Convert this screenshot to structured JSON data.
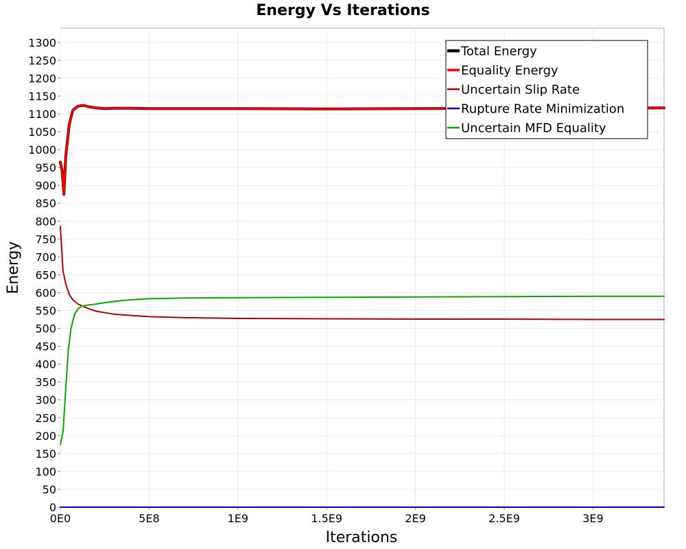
{
  "chart_data": {
    "type": "line",
    "title": "Energy Vs Iterations",
    "xlabel": "Iterations",
    "ylabel": "Energy",
    "xlim": [
      0,
      3400000000
    ],
    "ylim": [
      0,
      1340
    ],
    "grid": true,
    "legend_position": "top-right",
    "x_ticks": [
      {
        "value": 0,
        "label": "0E0"
      },
      {
        "value": 500000000,
        "label": "5E8"
      },
      {
        "value": 1000000000,
        "label": "1E9"
      },
      {
        "value": 1500000000,
        "label": "1.5E9"
      },
      {
        "value": 2000000000,
        "label": "2E9"
      },
      {
        "value": 2500000000,
        "label": "2.5E9"
      },
      {
        "value": 3000000000,
        "label": "3E9"
      }
    ],
    "y_ticks": [
      0,
      50,
      100,
      150,
      200,
      250,
      300,
      350,
      400,
      450,
      500,
      550,
      600,
      650,
      700,
      750,
      800,
      850,
      900,
      950,
      1000,
      1050,
      1100,
      1150,
      1200,
      1250,
      1300
    ],
    "series": [
      {
        "name": "Total Energy",
        "color": "#000000",
        "line_width": 4,
        "x": [
          0,
          10000000,
          20000000,
          30000000,
          50000000,
          70000000,
          100000000,
          130000000,
          160000000,
          200000000,
          250000000,
          300000000,
          400000000,
          500000000,
          700000000,
          1000000000,
          1500000000,
          2000000000,
          2500000000,
          3000000000,
          3400000000
        ],
        "y": [
          965,
          940,
          875,
          980,
          1070,
          1110,
          1122,
          1124,
          1120,
          1117,
          1115,
          1116,
          1116,
          1115,
          1115,
          1115,
          1114,
          1115,
          1116,
          1116,
          1117
        ]
      },
      {
        "name": "Equality Energy",
        "color": "#ff0000",
        "line_width": 3,
        "x": [
          0,
          10000000,
          20000000,
          30000000,
          50000000,
          70000000,
          100000000,
          130000000,
          160000000,
          200000000,
          250000000,
          300000000,
          400000000,
          500000000,
          700000000,
          1000000000,
          1500000000,
          2000000000,
          2500000000,
          3000000000,
          3400000000
        ],
        "y": [
          965,
          940,
          875,
          980,
          1070,
          1110,
          1122,
          1124,
          1120,
          1117,
          1115,
          1116,
          1116,
          1115,
          1115,
          1115,
          1114,
          1115,
          1116,
          1116,
          1117
        ]
      },
      {
        "name": "Uncertain Slip Rate",
        "color": "#b30000",
        "line_width": 2,
        "x": [
          0,
          15000000,
          30000000,
          50000000,
          70000000,
          100000000,
          150000000,
          200000000,
          300000000,
          400000000,
          500000000,
          700000000,
          1000000000,
          1500000000,
          2000000000,
          2500000000,
          3000000000,
          3400000000
        ],
        "y": [
          785,
          660,
          625,
          595,
          580,
          568,
          557,
          548,
          540,
          536,
          533,
          530,
          528,
          527,
          526,
          526,
          525,
          525
        ]
      },
      {
        "name": "Rupture Rate Minimization",
        "color": "#0000cc",
        "line_width": 2,
        "x": [
          0,
          3400000000
        ],
        "y": [
          0,
          0
        ]
      },
      {
        "name": "Uncertain MFD Equality",
        "color": "#00aa00",
        "line_width": 2,
        "x": [
          0,
          15000000,
          30000000,
          45000000,
          60000000,
          80000000,
          100000000,
          120000000,
          150000000,
          200000000,
          250000000,
          300000000,
          350000000,
          400000000,
          500000000,
          700000000,
          1000000000,
          1500000000,
          2000000000,
          2500000000,
          3000000000,
          3400000000
        ],
        "y": [
          175,
          210,
          330,
          440,
          500,
          540,
          555,
          562,
          565,
          568,
          572,
          575,
          578,
          580,
          583,
          585,
          586,
          587,
          588,
          589,
          590,
          590
        ]
      }
    ]
  }
}
